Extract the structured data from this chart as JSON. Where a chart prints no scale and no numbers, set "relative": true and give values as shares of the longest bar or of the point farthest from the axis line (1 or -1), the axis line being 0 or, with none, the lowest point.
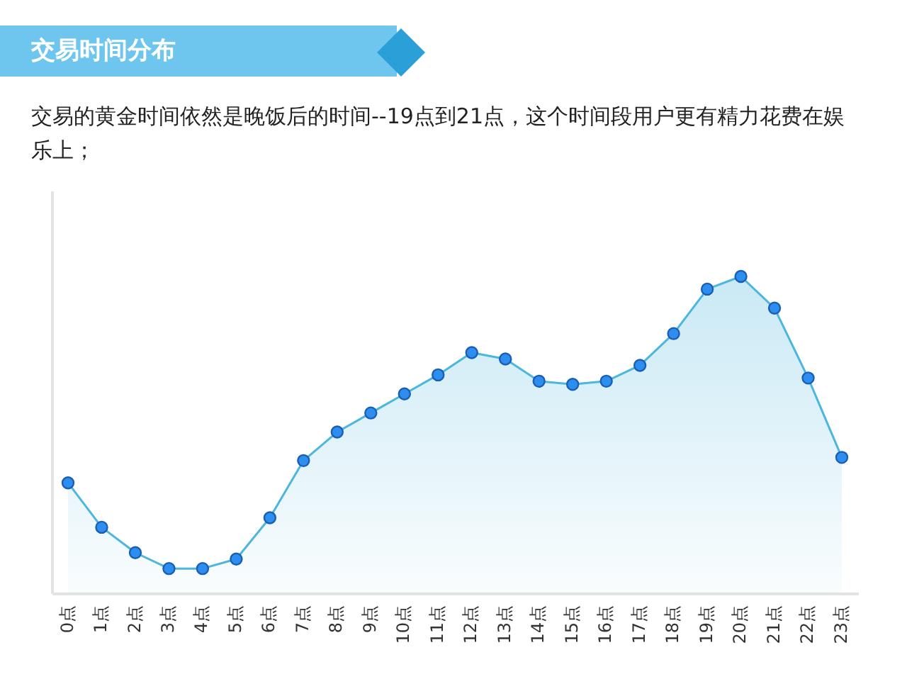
{
  "chart_data": {
    "type": "area",
    "title": "交易时间分布",
    "subtitle": "交易的黄金时间依然是晚饭后的时间--19点到21点，这个时间段用户更有精力花费在娱乐上；",
    "categories": [
      "0点",
      "1点",
      "2点",
      "3点",
      "4点",
      "5点",
      "6点",
      "7点",
      "8点",
      "9点",
      "10点",
      "11点",
      "12点",
      "13点",
      "14点",
      "15点",
      "16点",
      "17点",
      "18点",
      "19点",
      "20点",
      "21点",
      "22点",
      "23点"
    ],
    "values": [
      0.35,
      0.21,
      0.13,
      0.08,
      0.08,
      0.11,
      0.24,
      0.42,
      0.51,
      0.57,
      0.63,
      0.69,
      0.76,
      0.74,
      0.67,
      0.66,
      0.67,
      0.72,
      0.82,
      0.96,
      1,
      0.9,
      0.68,
      0.43
    ],
    "relative": true,
    "color": "#4db6dc",
    "marker": "circle"
  }
}
